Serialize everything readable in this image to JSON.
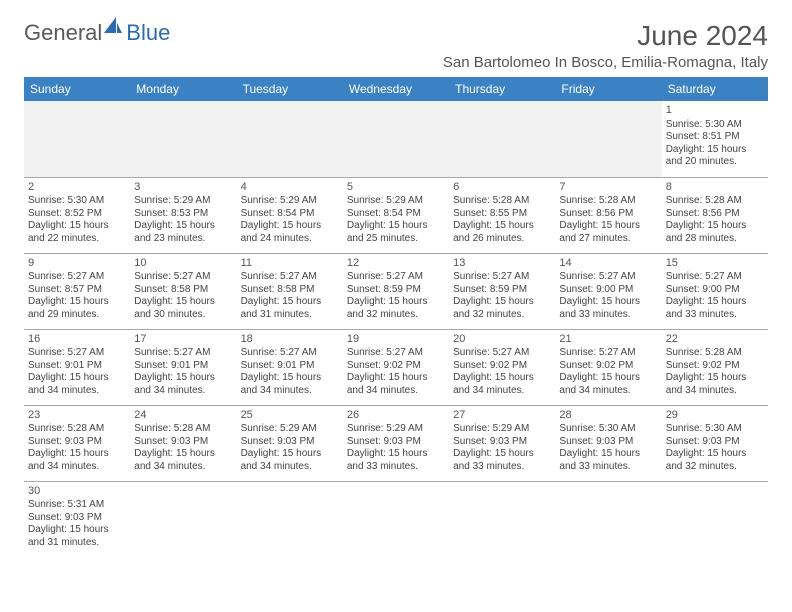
{
  "logo": {
    "general": "General",
    "blue": "Blue"
  },
  "title": "June 2024",
  "location": "San Bartolomeo In Bosco, Emilia-Romagna, Italy",
  "day_headers": [
    "Sunday",
    "Monday",
    "Tuesday",
    "Wednesday",
    "Thursday",
    "Friday",
    "Saturday"
  ],
  "colors": {
    "header_bg": "#3b82c4",
    "header_text": "#ffffff",
    "cell_border": "#a8a8a8",
    "empty_bg": "#f2f2f2",
    "text": "#444444",
    "title_text": "#555555"
  },
  "weeks": [
    [
      null,
      null,
      null,
      null,
      null,
      null,
      {
        "n": "1",
        "sunrise": "Sunrise: 5:30 AM",
        "sunset": "Sunset: 8:51 PM",
        "d1": "Daylight: 15 hours",
        "d2": "and 20 minutes."
      }
    ],
    [
      {
        "n": "2",
        "sunrise": "Sunrise: 5:30 AM",
        "sunset": "Sunset: 8:52 PM",
        "d1": "Daylight: 15 hours",
        "d2": "and 22 minutes."
      },
      {
        "n": "3",
        "sunrise": "Sunrise: 5:29 AM",
        "sunset": "Sunset: 8:53 PM",
        "d1": "Daylight: 15 hours",
        "d2": "and 23 minutes."
      },
      {
        "n": "4",
        "sunrise": "Sunrise: 5:29 AM",
        "sunset": "Sunset: 8:54 PM",
        "d1": "Daylight: 15 hours",
        "d2": "and 24 minutes."
      },
      {
        "n": "5",
        "sunrise": "Sunrise: 5:29 AM",
        "sunset": "Sunset: 8:54 PM",
        "d1": "Daylight: 15 hours",
        "d2": "and 25 minutes."
      },
      {
        "n": "6",
        "sunrise": "Sunrise: 5:28 AM",
        "sunset": "Sunset: 8:55 PM",
        "d1": "Daylight: 15 hours",
        "d2": "and 26 minutes."
      },
      {
        "n": "7",
        "sunrise": "Sunrise: 5:28 AM",
        "sunset": "Sunset: 8:56 PM",
        "d1": "Daylight: 15 hours",
        "d2": "and 27 minutes."
      },
      {
        "n": "8",
        "sunrise": "Sunrise: 5:28 AM",
        "sunset": "Sunset: 8:56 PM",
        "d1": "Daylight: 15 hours",
        "d2": "and 28 minutes."
      }
    ],
    [
      {
        "n": "9",
        "sunrise": "Sunrise: 5:27 AM",
        "sunset": "Sunset: 8:57 PM",
        "d1": "Daylight: 15 hours",
        "d2": "and 29 minutes."
      },
      {
        "n": "10",
        "sunrise": "Sunrise: 5:27 AM",
        "sunset": "Sunset: 8:58 PM",
        "d1": "Daylight: 15 hours",
        "d2": "and 30 minutes."
      },
      {
        "n": "11",
        "sunrise": "Sunrise: 5:27 AM",
        "sunset": "Sunset: 8:58 PM",
        "d1": "Daylight: 15 hours",
        "d2": "and 31 minutes."
      },
      {
        "n": "12",
        "sunrise": "Sunrise: 5:27 AM",
        "sunset": "Sunset: 8:59 PM",
        "d1": "Daylight: 15 hours",
        "d2": "and 32 minutes."
      },
      {
        "n": "13",
        "sunrise": "Sunrise: 5:27 AM",
        "sunset": "Sunset: 8:59 PM",
        "d1": "Daylight: 15 hours",
        "d2": "and 32 minutes."
      },
      {
        "n": "14",
        "sunrise": "Sunrise: 5:27 AM",
        "sunset": "Sunset: 9:00 PM",
        "d1": "Daylight: 15 hours",
        "d2": "and 33 minutes."
      },
      {
        "n": "15",
        "sunrise": "Sunrise: 5:27 AM",
        "sunset": "Sunset: 9:00 PM",
        "d1": "Daylight: 15 hours",
        "d2": "and 33 minutes."
      }
    ],
    [
      {
        "n": "16",
        "sunrise": "Sunrise: 5:27 AM",
        "sunset": "Sunset: 9:01 PM",
        "d1": "Daylight: 15 hours",
        "d2": "and 34 minutes."
      },
      {
        "n": "17",
        "sunrise": "Sunrise: 5:27 AM",
        "sunset": "Sunset: 9:01 PM",
        "d1": "Daylight: 15 hours",
        "d2": "and 34 minutes."
      },
      {
        "n": "18",
        "sunrise": "Sunrise: 5:27 AM",
        "sunset": "Sunset: 9:01 PM",
        "d1": "Daylight: 15 hours",
        "d2": "and 34 minutes."
      },
      {
        "n": "19",
        "sunrise": "Sunrise: 5:27 AM",
        "sunset": "Sunset: 9:02 PM",
        "d1": "Daylight: 15 hours",
        "d2": "and 34 minutes."
      },
      {
        "n": "20",
        "sunrise": "Sunrise: 5:27 AM",
        "sunset": "Sunset: 9:02 PM",
        "d1": "Daylight: 15 hours",
        "d2": "and 34 minutes."
      },
      {
        "n": "21",
        "sunrise": "Sunrise: 5:27 AM",
        "sunset": "Sunset: 9:02 PM",
        "d1": "Daylight: 15 hours",
        "d2": "and 34 minutes."
      },
      {
        "n": "22",
        "sunrise": "Sunrise: 5:28 AM",
        "sunset": "Sunset: 9:02 PM",
        "d1": "Daylight: 15 hours",
        "d2": "and 34 minutes."
      }
    ],
    [
      {
        "n": "23",
        "sunrise": "Sunrise: 5:28 AM",
        "sunset": "Sunset: 9:03 PM",
        "d1": "Daylight: 15 hours",
        "d2": "and 34 minutes."
      },
      {
        "n": "24",
        "sunrise": "Sunrise: 5:28 AM",
        "sunset": "Sunset: 9:03 PM",
        "d1": "Daylight: 15 hours",
        "d2": "and 34 minutes."
      },
      {
        "n": "25",
        "sunrise": "Sunrise: 5:29 AM",
        "sunset": "Sunset: 9:03 PM",
        "d1": "Daylight: 15 hours",
        "d2": "and 34 minutes."
      },
      {
        "n": "26",
        "sunrise": "Sunrise: 5:29 AM",
        "sunset": "Sunset: 9:03 PM",
        "d1": "Daylight: 15 hours",
        "d2": "and 33 minutes."
      },
      {
        "n": "27",
        "sunrise": "Sunrise: 5:29 AM",
        "sunset": "Sunset: 9:03 PM",
        "d1": "Daylight: 15 hours",
        "d2": "and 33 minutes."
      },
      {
        "n": "28",
        "sunrise": "Sunrise: 5:30 AM",
        "sunset": "Sunset: 9:03 PM",
        "d1": "Daylight: 15 hours",
        "d2": "and 33 minutes."
      },
      {
        "n": "29",
        "sunrise": "Sunrise: 5:30 AM",
        "sunset": "Sunset: 9:03 PM",
        "d1": "Daylight: 15 hours",
        "d2": "and 32 minutes."
      }
    ],
    [
      {
        "n": "30",
        "sunrise": "Sunrise: 5:31 AM",
        "sunset": "Sunset: 9:03 PM",
        "d1": "Daylight: 15 hours",
        "d2": "and 31 minutes."
      },
      null,
      null,
      null,
      null,
      null,
      null
    ]
  ]
}
